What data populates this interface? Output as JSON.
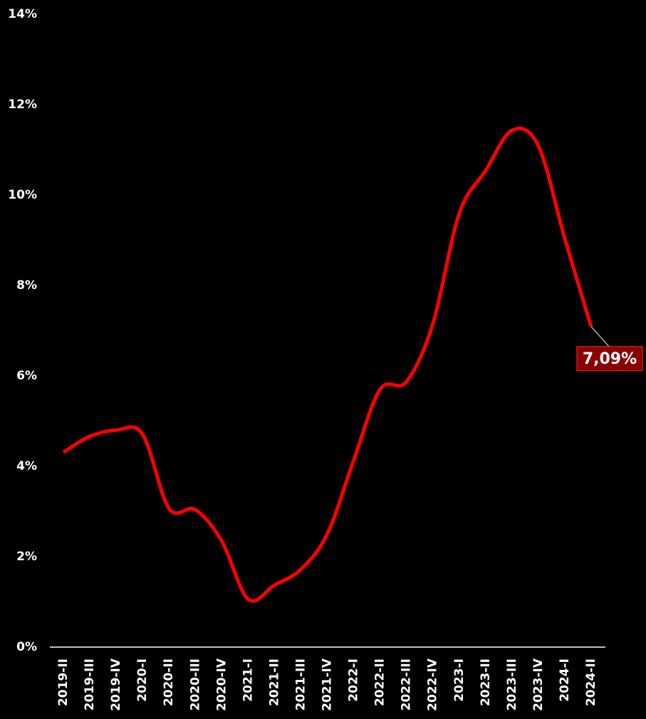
{
  "chart_data": {
    "type": "line",
    "categories": [
      "2019-II",
      "2019-III",
      "2019-IV",
      "2020-I",
      "2020-II",
      "2020-III",
      "2020-IV",
      "2021-I",
      "2021-II",
      "2021-III",
      "2021-IV",
      "2022-I",
      "2022-II",
      "2022-III",
      "2022-IV",
      "2023-I",
      "2023-II",
      "2023-III",
      "2023-IV",
      "2024-I",
      "2024-II"
    ],
    "series": [
      {
        "color": "#ff0000",
        "values": [
          4.31,
          4.66,
          4.8,
          4.71,
          3.07,
          3.04,
          2.35,
          1.06,
          1.37,
          1.72,
          2.5,
          4.13,
          5.7,
          5.87,
          7.15,
          9.59,
          10.54,
          11.43,
          11.09,
          9.04,
          7.09
        ],
        "value_labels": [
          null,
          null,
          null,
          null,
          null,
          null,
          null,
          null,
          null,
          null,
          null,
          null,
          null,
          null,
          null,
          null,
          null,
          null,
          null,
          null,
          "7,09%"
        ]
      }
    ],
    "ylim": [
      0,
      14
    ],
    "yticks": [
      {
        "value": 0,
        "label": "0%"
      },
      {
        "value": 2,
        "label": "2%"
      },
      {
        "value": 4,
        "label": "4%"
      },
      {
        "value": 6,
        "label": "6%"
      },
      {
        "value": 8,
        "label": "8%"
      },
      {
        "value": 10,
        "label": "10%"
      },
      {
        "value": 12,
        "label": "12%"
      },
      {
        "value": 14,
        "label": "14%"
      }
    ],
    "grid": false
  }
}
